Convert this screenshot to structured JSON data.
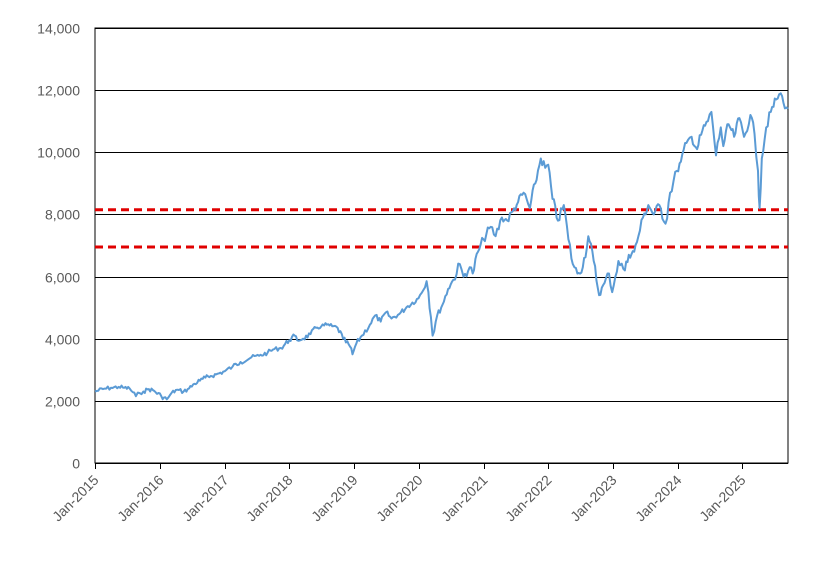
{
  "chart_data": {
    "type": "line",
    "title": "",
    "xlabel": "",
    "ylabel": "",
    "x_range": [
      "2015-01-01",
      "2025-09-15"
    ],
    "ylim": [
      0,
      14000
    ],
    "y_ticks": [
      0,
      2000,
      4000,
      6000,
      8000,
      10000,
      12000,
      14000
    ],
    "y_tick_labels": [
      "0",
      "2,000",
      "4,000",
      "6,000",
      "8,000",
      "10,000",
      "12,000",
      "14,000"
    ],
    "x_ticks": [
      "2015-01-01",
      "2016-01-01",
      "2017-01-01",
      "2018-01-01",
      "2019-01-01",
      "2020-01-01",
      "2021-01-01",
      "2022-01-01",
      "2023-01-01",
      "2024-01-01",
      "2025-01-01"
    ],
    "x_tick_labels": [
      "Jan-2015",
      "Jan-2016",
      "Jan-2017",
      "Jan-2018",
      "Jan-2019",
      "Jan-2020",
      "Jan-2021",
      "Jan-2022",
      "Jan-2023",
      "Jan-2024",
      "Jan-2025"
    ],
    "grid": "horizontal",
    "legend": "none",
    "series": [
      {
        "color": "#5b9bd5",
        "points": [
          [
            "2015-01-01",
            2300
          ],
          [
            "2015-02-15",
            2380
          ],
          [
            "2015-04-01",
            2420
          ],
          [
            "2015-05-15",
            2450
          ],
          [
            "2015-06-15",
            2420
          ],
          [
            "2015-07-15",
            2400
          ],
          [
            "2015-08-20",
            2150
          ],
          [
            "2015-09-10",
            2250
          ],
          [
            "2015-10-01",
            2300
          ],
          [
            "2015-11-01",
            2380
          ],
          [
            "2015-12-01",
            2320
          ],
          [
            "2016-01-10",
            2150
          ],
          [
            "2016-02-10",
            2050
          ],
          [
            "2016-03-01",
            2200
          ],
          [
            "2016-04-01",
            2350
          ],
          [
            "2016-05-15",
            2300
          ],
          [
            "2016-06-15",
            2400
          ],
          [
            "2016-07-15",
            2550
          ],
          [
            "2016-08-15",
            2650
          ],
          [
            "2016-09-15",
            2750
          ],
          [
            "2016-10-15",
            2800
          ],
          [
            "2016-11-15",
            2850
          ],
          [
            "2017-01-01",
            2950
          ],
          [
            "2017-02-15",
            3100
          ],
          [
            "2017-04-01",
            3250
          ],
          [
            "2017-06-01",
            3400
          ],
          [
            "2017-07-15",
            3450
          ],
          [
            "2017-09-01",
            3550
          ],
          [
            "2017-10-01",
            3650
          ],
          [
            "2017-11-15",
            3700
          ],
          [
            "2018-01-01",
            3950
          ],
          [
            "2018-02-01",
            4100
          ],
          [
            "2018-02-15",
            3950
          ],
          [
            "2018-03-20",
            4000
          ],
          [
            "2018-05-01",
            4150
          ],
          [
            "2018-06-01",
            4350
          ],
          [
            "2018-07-01",
            4400
          ],
          [
            "2018-08-01",
            4450
          ],
          [
            "2018-09-01",
            4400
          ],
          [
            "2018-10-01",
            4350
          ],
          [
            "2018-11-01",
            4000
          ],
          [
            "2018-12-10",
            3750
          ],
          [
            "2018-12-24",
            3500
          ],
          [
            "2019-01-15",
            3850
          ],
          [
            "2019-02-15",
            4100
          ],
          [
            "2019-04-01",
            4450
          ],
          [
            "2019-05-01",
            4750
          ],
          [
            "2019-06-01",
            4550
          ],
          [
            "2019-07-01",
            4850
          ],
          [
            "2019-08-01",
            4650
          ],
          [
            "2019-09-15",
            4800
          ],
          [
            "2019-11-01",
            5050
          ],
          [
            "2019-12-31",
            5300
          ],
          [
            "2020-02-15",
            5850
          ],
          [
            "2020-02-25",
            5500
          ],
          [
            "2020-03-10",
            4700
          ],
          [
            "2020-03-20",
            4100
          ],
          [
            "2020-04-15",
            4750
          ],
          [
            "2020-05-15",
            5100
          ],
          [
            "2020-06-15",
            5600
          ],
          [
            "2020-07-15",
            5900
          ],
          [
            "2020-08-20",
            6400
          ],
          [
            "2020-09-10",
            6000
          ],
          [
            "2020-10-15",
            6300
          ],
          [
            "2020-11-01",
            6100
          ],
          [
            "2020-12-01",
            6800
          ],
          [
            "2021-01-01",
            7200
          ],
          [
            "2021-02-10",
            7600
          ],
          [
            "2021-03-10",
            7300
          ],
          [
            "2021-04-15",
            7900
          ],
          [
            "2021-05-15",
            7800
          ],
          [
            "2021-06-15",
            8100
          ],
          [
            "2021-07-15",
            8400
          ],
          [
            "2021-08-15",
            8700
          ],
          [
            "2021-09-20",
            8200
          ],
          [
            "2021-10-20",
            9000
          ],
          [
            "2021-11-20",
            9800
          ],
          [
            "2021-12-15",
            9500
          ],
          [
            "2022-01-01",
            9600
          ],
          [
            "2022-01-25",
            8500
          ],
          [
            "2022-02-25",
            7800
          ],
          [
            "2022-03-30",
            8300
          ],
          [
            "2022-04-25",
            7200
          ],
          [
            "2022-05-20",
            6400
          ],
          [
            "2022-06-15",
            6100
          ],
          [
            "2022-07-15",
            6300
          ],
          [
            "2022-08-15",
            7300
          ],
          [
            "2022-09-15",
            6500
          ],
          [
            "2022-10-15",
            5400
          ],
          [
            "2022-11-15",
            5800
          ],
          [
            "2022-12-10",
            6100
          ],
          [
            "2022-12-28",
            5500
          ],
          [
            "2023-01-15",
            6000
          ],
          [
            "2023-02-01",
            6500
          ],
          [
            "2023-03-10",
            6200
          ],
          [
            "2023-04-01",
            6700
          ],
          [
            "2023-05-01",
            6800
          ],
          [
            "2023-05-25",
            7300
          ],
          [
            "2023-06-20",
            7900
          ],
          [
            "2023-07-20",
            8300
          ],
          [
            "2023-08-20",
            8000
          ],
          [
            "2023-09-20",
            8300
          ],
          [
            "2023-10-25",
            7700
          ],
          [
            "2023-11-20",
            8700
          ],
          [
            "2023-12-28",
            9400
          ],
          [
            "2024-01-20",
            9700
          ],
          [
            "2024-02-20",
            10300
          ],
          [
            "2024-03-20",
            10500
          ],
          [
            "2024-04-20",
            10100
          ],
          [
            "2024-05-20",
            10700
          ],
          [
            "2024-06-20",
            11000
          ],
          [
            "2024-07-10",
            11300
          ],
          [
            "2024-08-05",
            9900
          ],
          [
            "2024-09-01",
            10800
          ],
          [
            "2024-09-15",
            10200
          ],
          [
            "2024-10-15",
            10900
          ],
          [
            "2024-11-15",
            10500
          ],
          [
            "2024-12-15",
            11100
          ],
          [
            "2025-01-10",
            10500
          ],
          [
            "2025-02-15",
            11200
          ],
          [
            "2025-03-10",
            10600
          ],
          [
            "2025-03-30",
            9400
          ],
          [
            "2025-04-08",
            8200
          ],
          [
            "2025-04-20",
            9800
          ],
          [
            "2025-05-15",
            10800
          ],
          [
            "2025-06-10",
            11300
          ],
          [
            "2025-07-10",
            11700
          ],
          [
            "2025-08-05",
            11900
          ],
          [
            "2025-08-20",
            11600
          ],
          [
            "2025-09-15",
            11400
          ]
        ]
      }
    ],
    "reference_lines": [
      {
        "y": 8150,
        "color": "#e00000",
        "style": "dashed"
      },
      {
        "y": 6950,
        "color": "#e00000",
        "style": "dashed"
      }
    ]
  }
}
